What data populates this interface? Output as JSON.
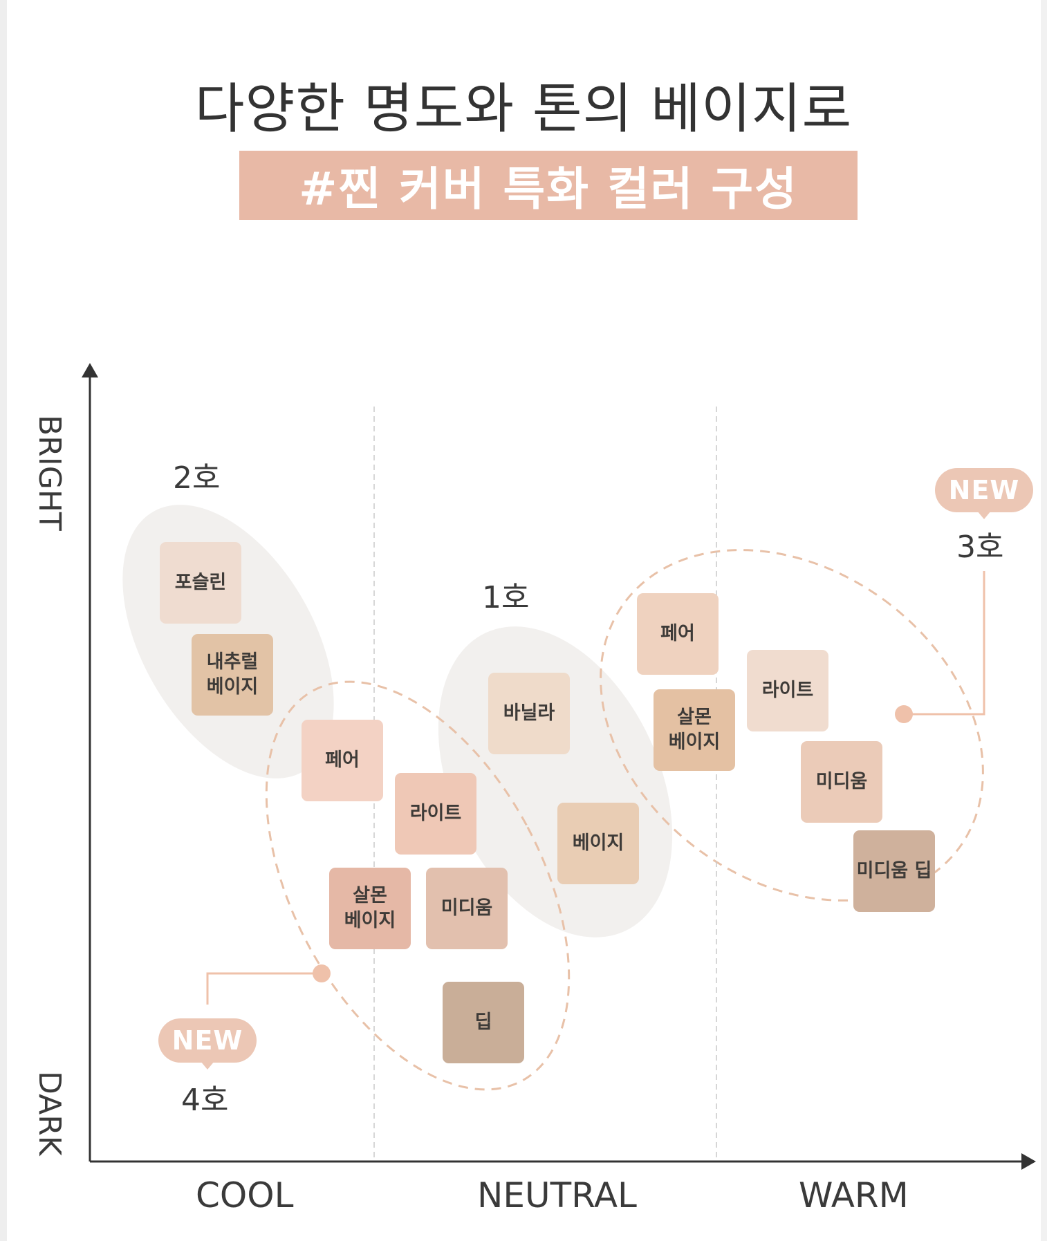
{
  "header": {
    "title": "다양한 명도와 톤의 베이지로",
    "subtitle": "#찐 커버 특화 컬러 구성"
  },
  "axes": {
    "y_top": "BRIGHT",
    "y_bottom": "DARK",
    "x_left": "COOL",
    "x_center": "NEUTRAL",
    "x_right": "WARM"
  },
  "groups": {
    "g2": {
      "label": "2호",
      "is_new": false
    },
    "g1": {
      "label": "1호",
      "is_new": false
    },
    "g3": {
      "label": "3호",
      "is_new": true,
      "badge": "NEW"
    },
    "g4": {
      "label": "4호",
      "is_new": true,
      "badge": "NEW"
    }
  },
  "swatches": {
    "g2_porcelain": {
      "text": "포슬린",
      "color": "#efdcd0"
    },
    "g2_natural": {
      "line1": "내추럴",
      "line2": "베이지",
      "color": "#e2c3a6"
    },
    "g4_fair": {
      "text": "페어",
      "color": "#f3d2c4"
    },
    "g4_light": {
      "text": "라이트",
      "color": "#efc8b6"
    },
    "g4_salmon": {
      "line1": "살몬",
      "line2": "베이지",
      "color": "#e5b8a6"
    },
    "g4_medium": {
      "text": "미디움",
      "color": "#e2c0ae"
    },
    "g4_deep": {
      "text": "딥",
      "color": "#c9ae98"
    },
    "g1_vanilla": {
      "text": "바닐라",
      "color": "#efdbca"
    },
    "g1_beige": {
      "text": "베이지",
      "color": "#e9cdb4"
    },
    "g3_fair": {
      "text": "페어",
      "color": "#efd2bf"
    },
    "g3_light": {
      "text": "라이트",
      "color": "#f0dccf"
    },
    "g3_salmon": {
      "line1": "살몬",
      "line2": "베이지",
      "color": "#e4c1a3"
    },
    "g3_medium": {
      "text": "미디움",
      "color": "#ebcbb8"
    },
    "g3_medium_deep": {
      "text": "미디움 딥",
      "color": "#cfb19c"
    }
  },
  "colors": {
    "accent": "#e8b9a6",
    "badge": "#ecc7b5",
    "new_marker": "#efc1aa",
    "dashed_outline": "#e8c1a8",
    "light_blob": "#f2f0ee",
    "axis": "#333333"
  }
}
